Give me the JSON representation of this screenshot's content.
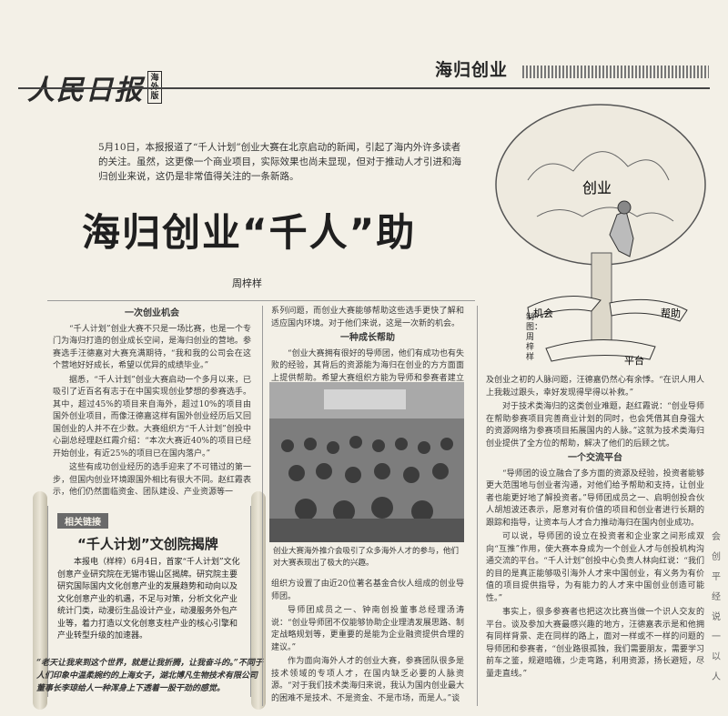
{
  "masthead": {
    "logo": "人民日报",
    "edition": "海外版"
  },
  "section": {
    "label": "海归创业"
  },
  "lede": "5月10日，本报报道了“千人计划”创业大赛在北京启动的新闻，引起了海内外许多读者的关注。虽然，这更像一个商业项目，实际效果也尚未显现，但对于推动人才引进和海归创业来说，这仍是非常值得关注的一条新路。",
  "headline": "海归创业“千人”助",
  "byline": "周梓样",
  "col1": {
    "subhead": "一次创业机会",
    "paras": [
      "“千人计划”创业大赛不只是一场比赛，也是一个专门为海归打造的创业成长空间，是海归创业的营地。参赛选手汪德嘉对大赛充满期待，“我和我的公司会在这个营地好好成长，希望以优异的成绩毕业。”",
      "据悉，“千人计划”创业大赛启动一个多月以来，已吸引了近百名有志于在中国实现创业梦想的参赛选手。其中，超过45%的项目来自海外，超过10%的项目由国外创业项目，而像汪德嘉这样有国外创业经历后又回国创业的人并不在少数。大赛组织方“千人计划”创投中心副总经理赵红霞介绍：“本次大赛近40%的项目已经开始创业，有近25%的项目已在国内落户。”",
      "这些有成功创业经历的选手迎来了不可错过的第一步，但国内创业环境跟国外相比有很大不同。赵红霞表示，他们仍然面临资金、团队建设、产业资源等一"
    ]
  },
  "sidebar": {
    "tag": "相关链接",
    "title": "“千人计划”文创院揭牌",
    "body": "本报电（样梓）6月4日，首家“千人计划”文化创意产业研究院在无锡市锡山区揭牌。研究院主要研究国际国内文化创意产业的发展趋势和动向以及文化创意产业的机遇，不足与对策，分析文化产业统计门类，动漫衍生品设计产业，动漫服务外包产业等，着力打造以文化创意支柱产业的核心引擎和产业转型升级的加速器。"
  },
  "quote": "“老天让我来到这个世界，就是让我折腾，让我奋斗的。”不同于人们印象中温柔婉约的上海女子，湖北博凡生物技术有限公司董事长李琼给人一种浑身上下透着一股干劲的感觉。",
  "col2": {
    "top": "系列问题，而创业大赛能够帮助这些选手更快了解和适应国内环境。对于他们来说，这是一次新的机会。",
    "subhead": "一种成长帮助",
    "para": "“创业大赛拥有很好的导师团，他们有成功也有失败的经验，其背后的资源能为海归在创业的方方面面上提供帮助。希望大赛组织方能为导师和参赛者建立一个通讯录。”谈及大赛设置的创业导师团，汪德嘉这样说。据悉，为了给参赛选手更好的帮助，大赛",
    "caption": "创业大赛海外推介会吸引了众多海外人才的参与，他们对大赛表现出了极大的兴趣。",
    "bottom": [
      "组织方设置了由近20位著名基金合伙人组成的创业导师团。",
      "导师团成员之一、钟南创投董事总经理汤涛说：“创业导师团不仅能够协助企业理清发展思路、制定战略规划等，更重要的是能为企业融资提供合理的建议。”",
      "作为面向海外人才的创业大赛，参赛团队很多是技术领域的专项人才，在国内缺乏必要的人脉资源。“对于我们技术类海归来说，我认为国内创业最大的困难不是技术、不是资金、不是市场，而是人。”谈"
    ]
  },
  "cartoon": {
    "label_top": "创业",
    "label_left": "机会",
    "label_right": "帮助",
    "label_bottom": "平台",
    "credit": "制图：周梓样"
  },
  "col3": {
    "top": "及创业之初的人脉问题，汪德嘉仍然心有余悸。“在识人用人上我栽过跟头，幸好发现得早得以补救。”",
    "para": "对于技术类海归的这类创业难题，赵红霞说：“创业导师在帮助参赛项目完善商业计划的同时，也会凭借其自身强大的资源网络为参赛项目拓展国内的人脉。”这就为技术类海归创业提供了全方位的帮助，解决了他们的后顾之忧。",
    "subhead": "一个交流平台",
    "paras": [
      "“导师团的设立融合了多方面的资源及经验，投资者能够更大范围地与创业者沟通，对他们给予帮助和支持，让创业者也能更好地了解投资者。”导师团成员之一、启明创投合伙人胡旭波还表示，愿意对有价值的项目和创业者进行长期的跟踪和指导，让资本与人才合力推动海归在国内创业成功。",
      "可以说，导师团的设立在投资者和企业家之间形成双向“互推”作用，使大赛本身成为一个创业人才与创投机构沟通交流的平台。“千人计划”创投中心负责人林向红说：“我们的目的是真正能够吸引海外人才来中国创业，有义务为有价值的项目提供指导，为有能力的人才来中国创业创造可能性。”",
      "事实上，很多参赛者也把这次比赛当做一个识人交友的平台。谈及参加大赛最感兴趣的地方，汪德嘉表示是和他拥有同样背景、走在同样的路上，面对一样或不一样的问题的导师团和参赛者，“创业路很孤独，我们需要朋友，需要学习前车之鉴，规避暗礁，少走弯路，利用资源，扬长避短，尽量走直线。”"
    ]
  },
  "edge": "会 创 平 经 说 一 以 人"
}
